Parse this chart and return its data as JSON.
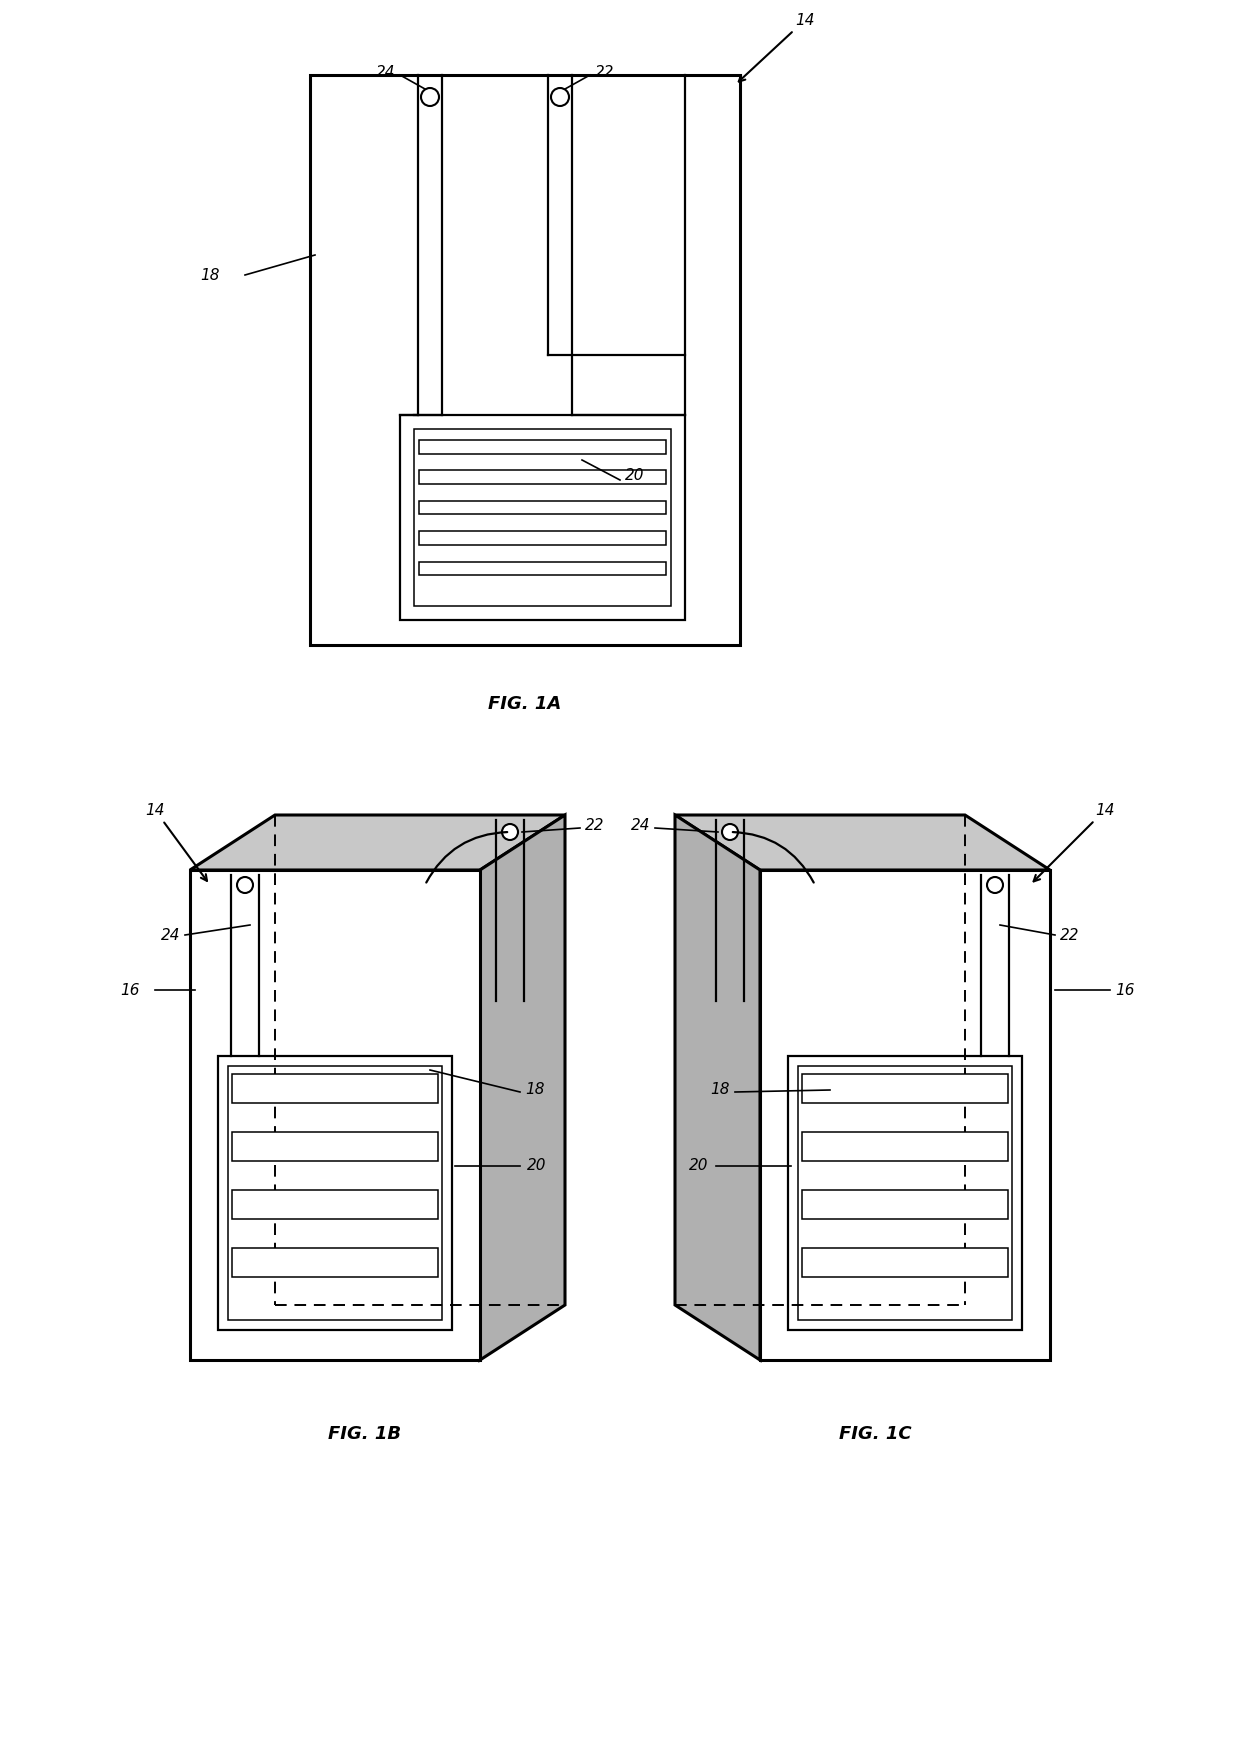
{
  "fig_background": "#ffffff",
  "line_color": "#000000",
  "fig1a_label": "FIG. 1A",
  "fig1b_label": "FIG. 1B",
  "fig1c_label": "FIG. 1C",
  "font_size_label": 11,
  "font_size_fig": 12,
  "lw_thick": 2.2,
  "lw_main": 1.6,
  "lw_thin": 1.1,
  "lw_dashed": 1.4,
  "gray_top": "#c8c8c8",
  "gray_side": "#b0b0b0",
  "gray_dark": "#888888"
}
